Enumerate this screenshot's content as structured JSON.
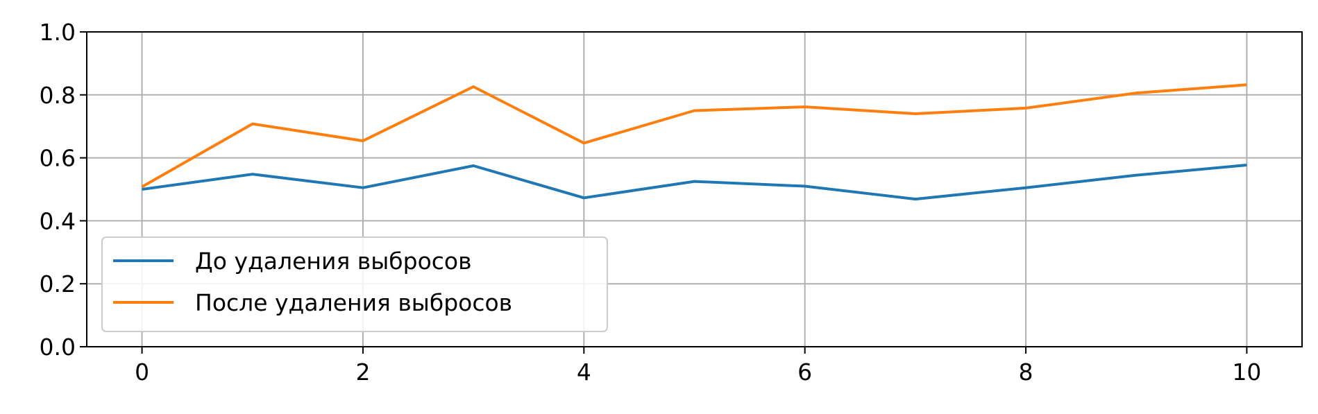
{
  "chart_data": {
    "type": "line",
    "x": [
      0,
      1,
      2,
      3,
      4,
      5,
      6,
      7,
      8,
      9,
      10
    ],
    "series": [
      {
        "name": "До удаления выбросов",
        "color": "#1f77b4",
        "values": [
          0.5,
          0.548,
          0.505,
          0.575,
          0.473,
          0.525,
          0.51,
          0.469,
          0.505,
          0.545,
          0.577
        ]
      },
      {
        "name": "После удаления выбросов",
        "color": "#ff7f0e",
        "values": [
          0.508,
          0.708,
          0.654,
          0.826,
          0.647,
          0.75,
          0.762,
          0.74,
          0.758,
          0.806,
          0.832
        ]
      }
    ],
    "xlim": [
      -0.5,
      10.5
    ],
    "ylim": [
      0.0,
      1.0
    ],
    "xticks": [
      0,
      2,
      4,
      6,
      8,
      10
    ],
    "yticks": [
      0.0,
      0.2,
      0.4,
      0.6,
      0.8,
      1.0
    ],
    "xtick_labels": [
      "0",
      "2",
      "4",
      "6",
      "8",
      "10"
    ],
    "ytick_labels": [
      "0.0",
      "0.2",
      "0.4",
      "0.6",
      "0.8",
      "1.0"
    ],
    "grid": true,
    "legend_position": "lower-left"
  }
}
